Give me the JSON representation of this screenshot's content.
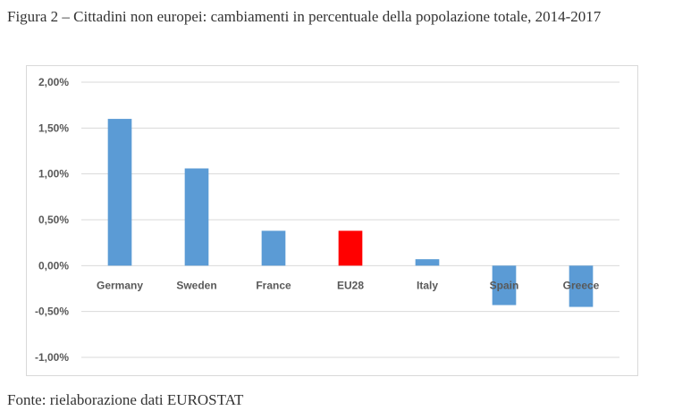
{
  "title": "Figura 2 – Cittadini non europei: cambiamenti in percentuale della popolazione totale, 2014-2017",
  "source": "Fonte: rielaborazione dati EUROSTAT",
  "chart_data": {
    "type": "bar",
    "title": "Figura 2 – Cittadini non europei: cambiamenti in percentuale della popolazione totale, 2014-2017",
    "xlabel": "",
    "ylabel": "",
    "categories": [
      "Germany",
      "Sweden",
      "France",
      "EU28",
      "Italy",
      "Spain",
      "Greece"
    ],
    "values": [
      1.6,
      1.06,
      0.38,
      0.38,
      0.07,
      -0.43,
      -0.45
    ],
    "colors": [
      "#5b9bd5",
      "#5b9bd5",
      "#5b9bd5",
      "#ff0000",
      "#5b9bd5",
      "#5b9bd5",
      "#5b9bd5"
    ],
    "ylim": [
      -1.0,
      2.0
    ],
    "yticks": [
      2.0,
      1.5,
      1.0,
      0.5,
      0.0,
      -0.5,
      -1.0
    ],
    "ytick_labels": [
      "2,00%",
      "1,50%",
      "1,00%",
      "0,50%",
      "0,00%",
      "-0,50%",
      "-1,00%"
    ],
    "grid": true,
    "legend": "none"
  }
}
